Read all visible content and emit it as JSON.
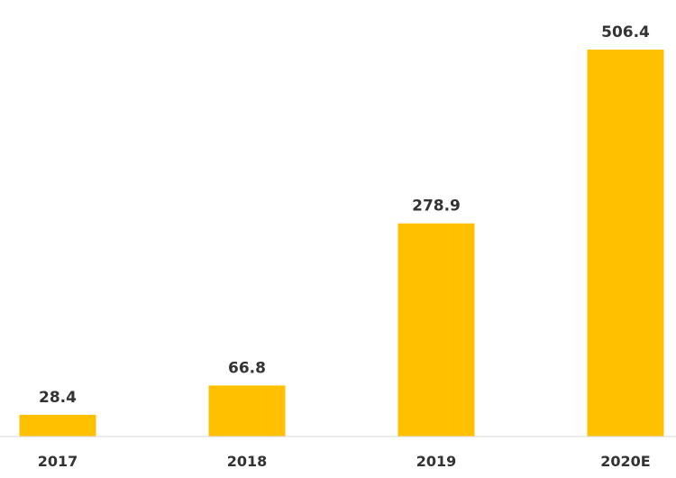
{
  "chart_data": {
    "type": "bar",
    "categories": [
      "2017",
      "2018",
      "2019",
      "2020E"
    ],
    "values": [
      28.4,
      66.8,
      278.9,
      506.4
    ],
    "value_labels": [
      "28.4",
      "66.8",
      "278.9",
      "506.4"
    ],
    "title": "",
    "xlabel": "",
    "ylabel": "",
    "ylim": [
      0,
      506.4
    ],
    "grid": false,
    "legend": "none",
    "colors": {
      "bar": "#FFC000",
      "axis": "#d9d9d9",
      "text": "#333333"
    }
  }
}
